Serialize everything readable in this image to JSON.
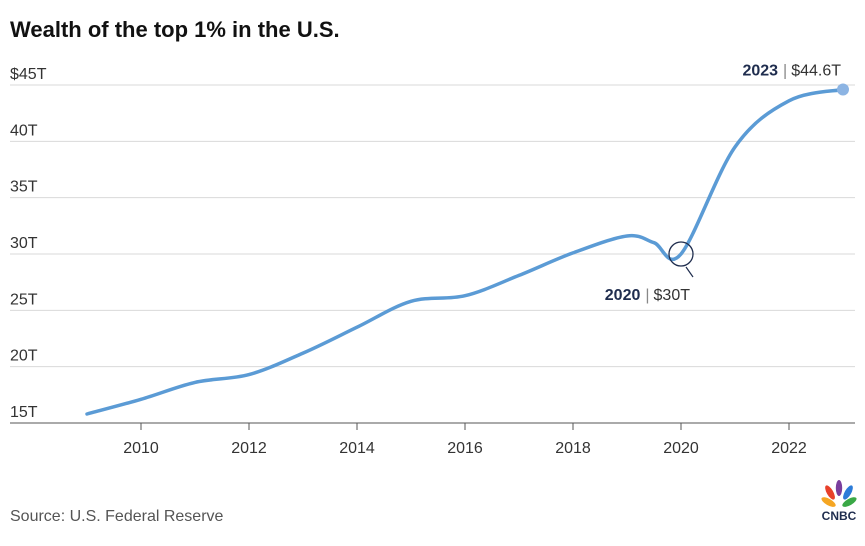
{
  "chart_data": {
    "type": "line",
    "title": "Wealth of the top 1% in the U.S.",
    "x_tick_labels": [
      "2010",
      "2012",
      "2014",
      "2016",
      "2018",
      "2020",
      "2022"
    ],
    "x_ticks": [
      2010,
      2012,
      2014,
      2016,
      2018,
      2020,
      2022
    ],
    "y_tick_labels": [
      "$45T",
      "40T",
      "35T",
      "30T",
      "25T",
      "20T",
      "15T"
    ],
    "y_ticks": [
      45,
      40,
      35,
      30,
      25,
      20,
      15
    ],
    "xlim": [
      2008.6,
      2023.3
    ],
    "ylim": [
      14,
      46
    ],
    "grid": true,
    "series": [
      {
        "color": "#5b9bd5",
        "x": [
          2009,
          2010,
          2011,
          2012,
          2013,
          2014,
          2015,
          2016,
          2017,
          2018,
          2019,
          2019.5,
          2020,
          2021,
          2022,
          2023
        ],
        "y": [
          15.8,
          17.1,
          18.6,
          19.3,
          21.2,
          23.5,
          25.8,
          26.3,
          28.1,
          30.1,
          31.6,
          31.0,
          30.0,
          39.5,
          43.6,
          44.6
        ]
      }
    ],
    "annotations": [
      {
        "year": "2020",
        "value": "$30T",
        "sep": "|",
        "x": 2020,
        "y": 30.0,
        "circle": true
      },
      {
        "year": "2023",
        "value": "$44.6T",
        "sep": "|",
        "x": 2023,
        "y": 44.6,
        "dot": true
      }
    ]
  },
  "source": "Source: U.S. Federal Reserve",
  "logo": {
    "text": "CNBC"
  }
}
